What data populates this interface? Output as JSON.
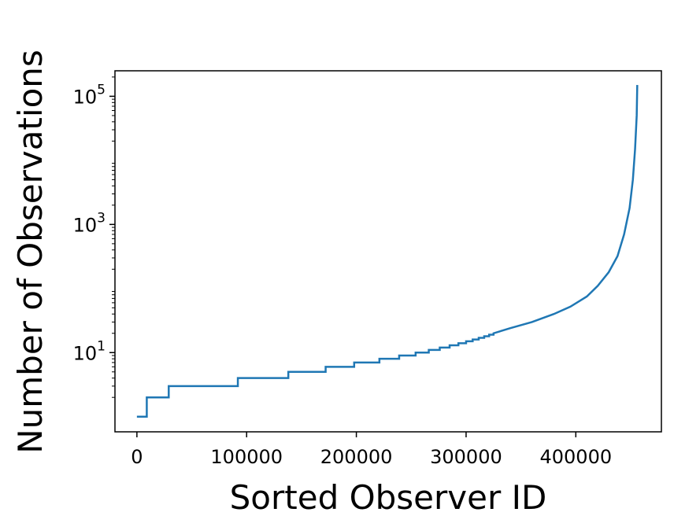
{
  "chart_data": {
    "type": "line",
    "title": "",
    "xlabel": "Sorted Observer ID",
    "ylabel": "Number of Observations",
    "yscale": "log",
    "xlim": [
      -20000,
      478000
    ],
    "ylim": [
      0.58,
      250000
    ],
    "grid": false,
    "legend": "none",
    "x_ticks": [
      {
        "value": 0,
        "label": "0"
      },
      {
        "value": 100000,
        "label": "100000"
      },
      {
        "value": 200000,
        "label": "200000"
      },
      {
        "value": 300000,
        "label": "300000"
      },
      {
        "value": 400000,
        "label": "400000"
      }
    ],
    "y_ticks": [
      {
        "value": 10,
        "base": "10",
        "exp": "1"
      },
      {
        "value": 1000,
        "base": "10",
        "exp": "3"
      },
      {
        "value": 100000,
        "base": "10",
        "exp": "5"
      }
    ],
    "color": "#1f77b4",
    "series": [
      {
        "steps": [
          {
            "x": 0,
            "y": 1
          },
          {
            "x": 9000,
            "y": 2
          },
          {
            "x": 29000,
            "y": 3
          },
          {
            "x": 92000,
            "y": 4
          },
          {
            "x": 138000,
            "y": 5
          },
          {
            "x": 172000,
            "y": 6
          },
          {
            "x": 198000,
            "y": 7
          },
          {
            "x": 221000,
            "y": 8
          },
          {
            "x": 239000,
            "y": 9
          },
          {
            "x": 254000,
            "y": 10
          },
          {
            "x": 266000,
            "y": 11
          },
          {
            "x": 276000,
            "y": 12
          },
          {
            "x": 285000,
            "y": 13
          },
          {
            "x": 293000,
            "y": 14
          },
          {
            "x": 300000,
            "y": 15
          },
          {
            "x": 306000,
            "y": 16
          },
          {
            "x": 311500,
            "y": 17
          },
          {
            "x": 316500,
            "y": 18
          },
          {
            "x": 321000,
            "y": 19
          },
          {
            "x": 325000,
            "y": 20
          }
        ],
        "curve": [
          {
            "x": 325000,
            "y": 20
          },
          {
            "x": 340000,
            "y": 24
          },
          {
            "x": 360000,
            "y": 30
          },
          {
            "x": 380000,
            "y": 40
          },
          {
            "x": 395000,
            "y": 52
          },
          {
            "x": 410000,
            "y": 75
          },
          {
            "x": 420000,
            "y": 110
          },
          {
            "x": 430000,
            "y": 180
          },
          {
            "x": 438000,
            "y": 320
          },
          {
            "x": 444000,
            "y": 700
          },
          {
            "x": 449000,
            "y": 1800
          },
          {
            "x": 452000,
            "y": 5000
          },
          {
            "x": 454000,
            "y": 15000
          },
          {
            "x": 455500,
            "y": 50000
          },
          {
            "x": 456000,
            "y": 150000
          }
        ]
      }
    ]
  }
}
